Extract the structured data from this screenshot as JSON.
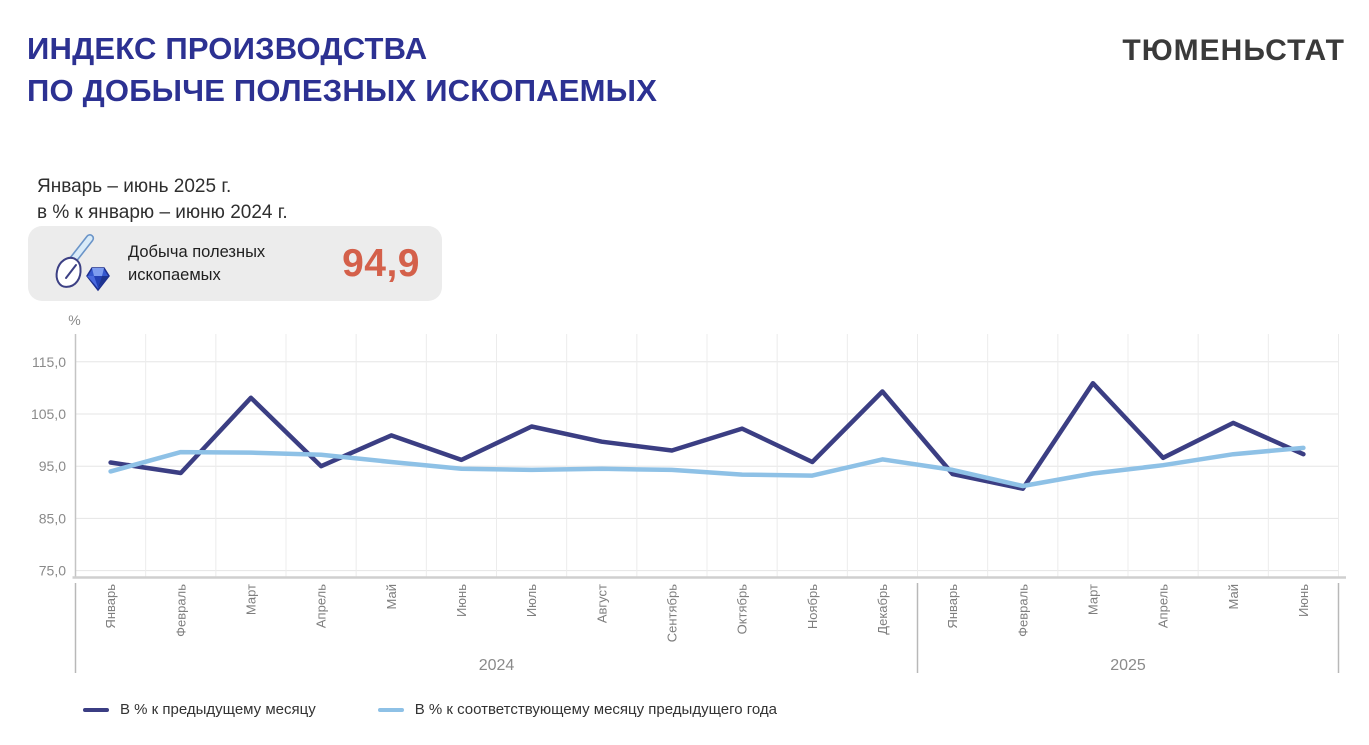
{
  "header": {
    "title_line1": "ИНДЕКС ПРОИЗВОДСТВА",
    "title_line2": "ПО ДОБЫЧЕ ПОЛЕЗНЫХ ИСКОПАЕМЫХ",
    "org": "ТЮМЕНЬСТАТ",
    "title_color": "#2c3192"
  },
  "subtitle": {
    "line1": "Январь – июнь 2025 г.",
    "line2": "в % к январю – июню 2024 г."
  },
  "kpi_card": {
    "icon": "shovel-diamond-icon",
    "label_line1": "Добыча полезных",
    "label_line2": "ископаемых",
    "value": "94,9",
    "value_color": "#d4604a",
    "card_background": "#ececec"
  },
  "chart_data": {
    "type": "line",
    "title": "",
    "xlabel": "",
    "ylabel": "%",
    "ylim": [
      75,
      121
    ],
    "grid": true,
    "legend_position": "bottom",
    "yticks": [
      75,
      85,
      95,
      105,
      115
    ],
    "ytick_labels": [
      "75,0",
      "85,0",
      "95,0",
      "105,0",
      "115,0"
    ],
    "categories": [
      "Январь",
      "Февраль",
      "Март",
      "Апрель",
      "Май",
      "Июнь",
      "Июль",
      "Август",
      "Сентябрь",
      "Октябрь",
      "Ноябрь",
      "Декабрь",
      "Январь",
      "Февраль",
      "Март",
      "Апрель",
      "Май",
      "Июнь"
    ],
    "year_groups": [
      {
        "label": "2024",
        "span": 12
      },
      {
        "label": "2025",
        "span": 6
      }
    ],
    "series": [
      {
        "name": "В % к предыдущему месяцу",
        "color": "#3b3e83",
        "values": [
          95.7,
          93.7,
          108.1,
          95.0,
          100.9,
          96.2,
          102.6,
          99.7,
          98.0,
          102.2,
          95.8,
          109.3,
          93.5,
          90.7,
          110.9,
          96.6,
          103.3,
          97.3
        ]
      },
      {
        "name": "В % к соответствующему месяцу предыдущего года",
        "color": "#8ec1e6",
        "values": [
          94.0,
          97.7,
          97.6,
          97.2,
          95.8,
          94.5,
          94.3,
          94.5,
          94.3,
          93.4,
          93.2,
          96.3,
          94.3,
          91.2,
          93.6,
          95.2,
          97.3,
          98.5
        ]
      }
    ]
  }
}
